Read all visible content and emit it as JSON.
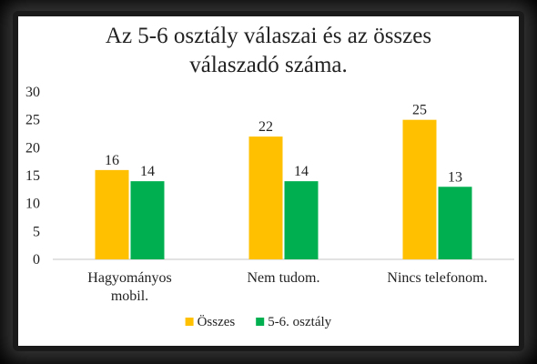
{
  "chart_data": {
    "type": "bar",
    "title": "Az 5-6 osztály válaszai és az összes\nválaszadó száma.",
    "categories": [
      [
        "Hagyományos",
        "mobil."
      ],
      [
        "Nem tudom."
      ],
      [
        "Nincs telefonom."
      ]
    ],
    "series": [
      {
        "name": "Összes",
        "values": [
          16,
          22,
          25
        ],
        "color": "#FFC000"
      },
      {
        "name": "5-6. osztály",
        "values": [
          14,
          14,
          13
        ],
        "color": "#00B050"
      }
    ],
    "yticks": [
      "0",
      "5",
      "10",
      "15",
      "20",
      "25",
      "30"
    ],
    "ylim": [
      0,
      30
    ],
    "grid": false,
    "legend": "bottom",
    "data_labels": true
  },
  "colors": {
    "axis": "#d9d9d9",
    "text": "#222222"
  }
}
